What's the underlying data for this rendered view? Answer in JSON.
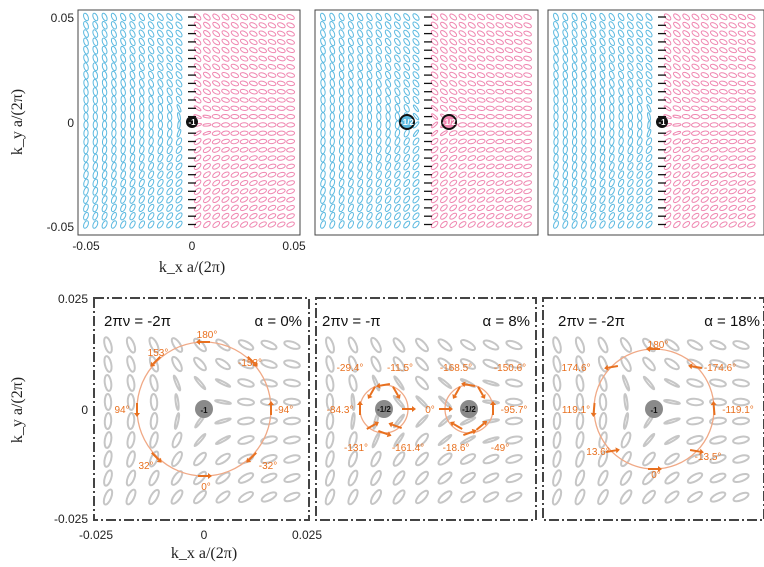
{
  "colors": {
    "left_ellipse": "#5bb9e0",
    "right_ellipse": "#ef86b0",
    "gray_ellipse": "#c6c6c6",
    "arrow": "#e8701f",
    "circle": "#f0a986",
    "vortex_fill_left": "#5bb9e0",
    "vortex_fill_right": "#ef86b0"
  },
  "top_axes": {
    "ylabel": "k_y a/(2π)",
    "xlabel": "k_x a/(2π)",
    "yticks": [
      "0.05",
      "0",
      "-0.05"
    ],
    "xticks": [
      "-0.05",
      "0",
      "0.05"
    ]
  },
  "top_panels": [
    {
      "charges": [
        "-1"
      ]
    },
    {
      "charges": [
        "-1/2",
        "-1/2"
      ]
    },
    {
      "charges": [
        "-1"
      ]
    }
  ],
  "bottom_axes": {
    "ylabel": "k_y a/(2π)",
    "xlabel": "k_x a/(2π)",
    "yticks": [
      "0.025",
      "0",
      "-0.025"
    ],
    "xticks": [
      "-0.025",
      "0",
      "0.025"
    ]
  },
  "bottom_panels": [
    {
      "nu_text": "2πν = -2π",
      "alpha_text": "α = 0%",
      "charges": [
        "-1"
      ],
      "angles": [
        "180°",
        "153°",
        "-153°",
        "94°",
        "-94°",
        "32°",
        "-32°",
        "0°"
      ]
    },
    {
      "nu_text": "2πν = -π",
      "alpha_text": "α = 8%",
      "charges": [
        "-1/2",
        "-1/2"
      ],
      "angles": [
        "-29.4°",
        "-11.5°",
        "-168.5°",
        "-150.6°",
        "-84.3°",
        "0°",
        "-95.7°",
        "-131°",
        "-161.4°",
        "-18.6°",
        "-49°"
      ]
    },
    {
      "nu_text": "2πν = -2π",
      "alpha_text": "α = 18%",
      "charges": [
        "-1"
      ],
      "angles": [
        "180°",
        "174.6°",
        "-174.6°",
        "119.1°",
        "-119.1°",
        "13.6°",
        "-13.5°",
        "0°"
      ]
    }
  ]
}
